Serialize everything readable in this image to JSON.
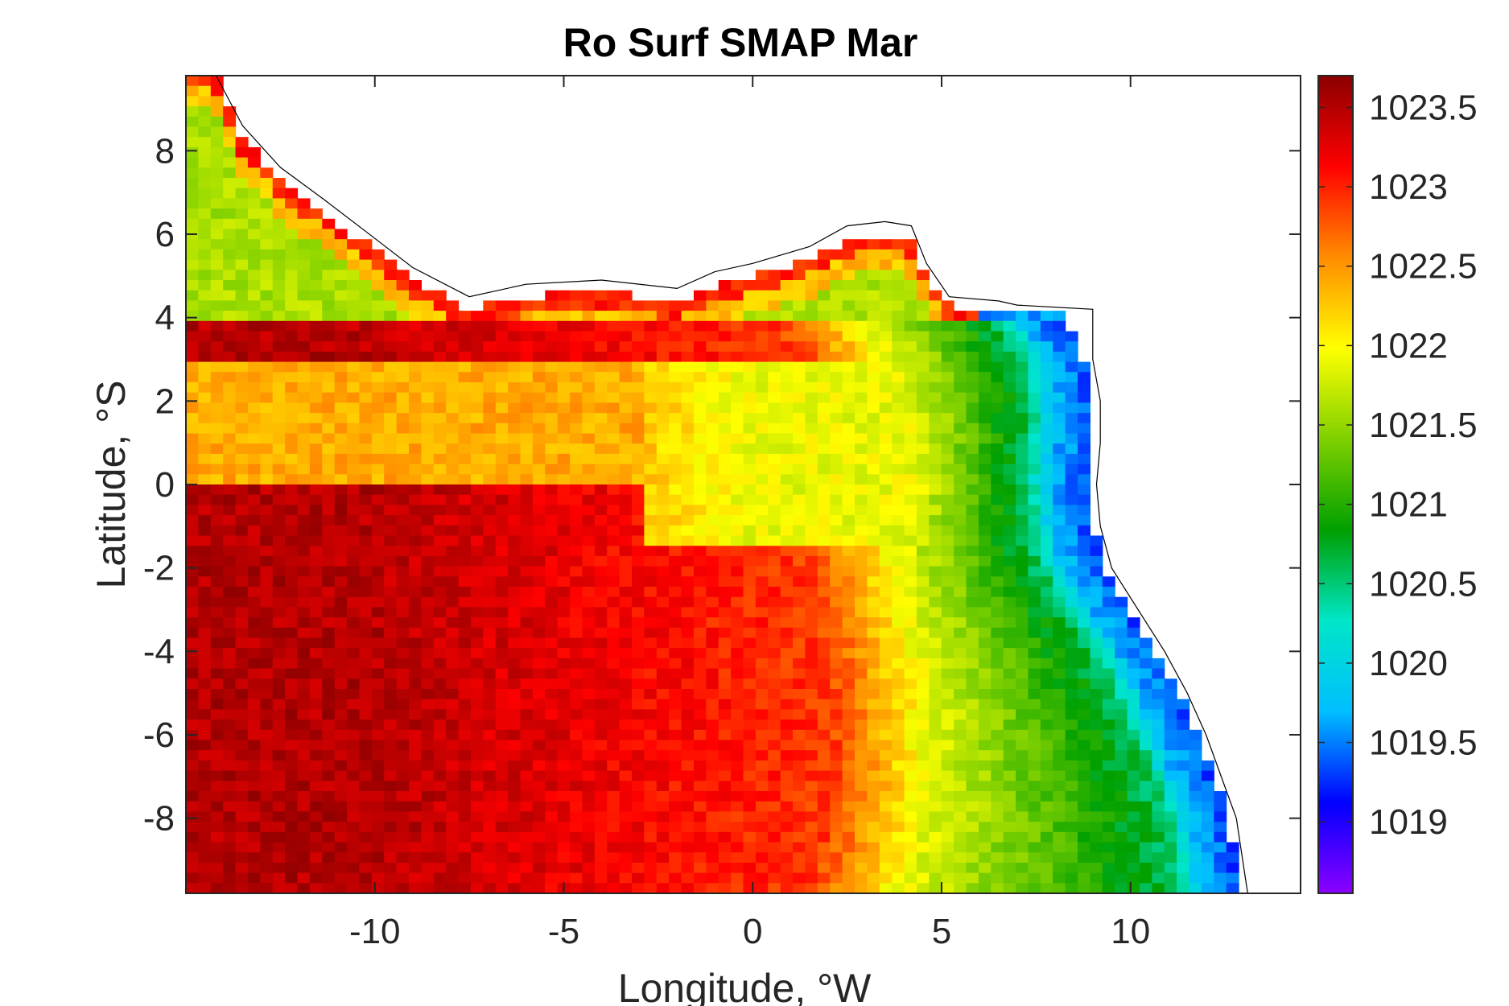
{
  "chart_data": {
    "type": "heatmap",
    "title": "Ro Surf SMAP Mar",
    "xlabel": "Longitude, °W",
    "ylabel": "Latitude, °S",
    "xlim": [
      -15,
      14.5
    ],
    "ylim": [
      -9.8,
      9.8
    ],
    "x_ticks": [
      -10,
      -5,
      0,
      5,
      10
    ],
    "x_tick_labels": [
      "-10",
      "-5",
      "0",
      "5",
      "10"
    ],
    "y_ticks": [
      8,
      6,
      4,
      2,
      0,
      -2,
      -4,
      -6,
      -8
    ],
    "y_tick_labels": [
      "8",
      "6",
      "4",
      "2",
      "0",
      "-2",
      "-4",
      "-6",
      "-8"
    ],
    "colorbar": {
      "clim": [
        1018.55,
        1023.7
      ],
      "ticks": [
        1023.5,
        1023,
        1022.5,
        1022,
        1021.5,
        1021,
        1020.5,
        1020,
        1019.5,
        1019
      ],
      "tick_labels": [
        "1023.5",
        "1023",
        "1022.5",
        "1022",
        "1021.5",
        "1021",
        "1020.5",
        "1020",
        "1019.5",
        "1019"
      ],
      "colormap": [
        "#8b00ff",
        "#0000ff",
        "#00bfff",
        "#00e6c8",
        "#00a000",
        "#7fd000",
        "#ffff00",
        "#ff8c00",
        "#ff0000",
        "#8b0000"
      ]
    },
    "grid": false,
    "field_description_points": [
      {
        "lon": -12,
        "lat": -6,
        "value": 1023.3
      },
      {
        "lon": -5,
        "lat": -2,
        "value": 1023.2
      },
      {
        "lon": 0,
        "lat": -3,
        "value": 1022.3
      },
      {
        "lon": 2,
        "lat": 1,
        "value": 1021.7
      },
      {
        "lon": 5,
        "lat": 0,
        "value": 1021.2
      },
      {
        "lon": 7,
        "lat": -3,
        "value": 1020.8
      },
      {
        "lon": 10,
        "lat": -6,
        "value": 1019.4
      },
      {
        "lon": 8,
        "lat": 2,
        "value": 1019.6
      },
      {
        "lon": -10,
        "lat": 5,
        "value": 1021.6
      },
      {
        "lon": -8,
        "lat": 1,
        "value": 1022.4
      }
    ]
  }
}
